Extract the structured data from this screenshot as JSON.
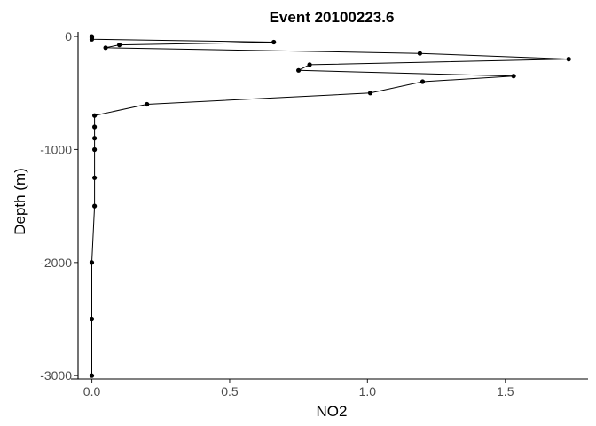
{
  "chart_data": {
    "type": "line",
    "title": "Event 20100223.6",
    "xlabel": "NO2",
    "ylabel": "Depth (m)",
    "xlim": [
      -0.05,
      1.8
    ],
    "ylim": [
      -3030,
      40
    ],
    "x_ticks": [
      0.0,
      0.5,
      1.0,
      1.5
    ],
    "x_tick_labels": [
      "0.0",
      "0.5",
      "1.0",
      "1.5"
    ],
    "y_ticks": [
      0,
      -1000,
      -2000,
      -3000
    ],
    "y_tick_labels": [
      "0",
      "-1000",
      "-2000",
      "-3000"
    ],
    "grid": false,
    "legend": "none",
    "series": [
      {
        "x": [
          0.0,
          0.0,
          0.0,
          0.66,
          0.1,
          0.05,
          1.19,
          1.73,
          0.79,
          0.75,
          1.53,
          1.2,
          1.01,
          0.2,
          0.01,
          0.01,
          0.01,
          0.01,
          0.01,
          0.01,
          0.0,
          0.0,
          0.0
        ],
        "y": [
          0,
          -10,
          -25,
          -50,
          -75,
          -100,
          -150,
          -200,
          -250,
          -300,
          -350,
          -400,
          -500,
          -600,
          -700,
          -800,
          -900,
          -1000,
          -1250,
          -1500,
          -2000,
          -2500,
          -3000
        ]
      }
    ]
  }
}
